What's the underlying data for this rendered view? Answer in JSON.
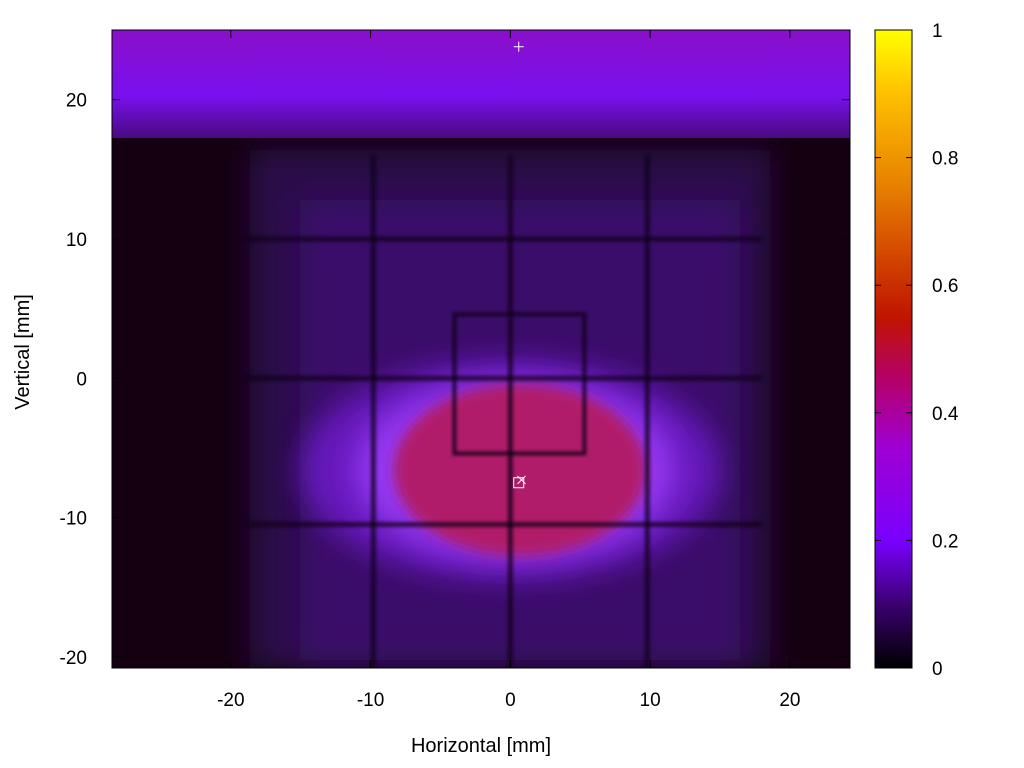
{
  "chart_data": {
    "type": "heatmap",
    "title": "",
    "xlabel": "Horizontal [mm]",
    "ylabel": "Vertical [mm]",
    "xlim": [
      -28.5,
      24.3
    ],
    "ylim": [
      -20.8,
      25.0
    ],
    "xticks": [
      -20,
      -10,
      0,
      10,
      20
    ],
    "yticks": [
      -20,
      -10,
      0,
      10,
      20
    ],
    "x_tick_labels": [
      "-20",
      "-10",
      "0",
      "10",
      "20"
    ],
    "y_tick_labels": [
      "-20",
      "-10",
      "0",
      "10",
      "20"
    ],
    "colorbar": {
      "range": [
        0,
        1
      ],
      "ticks": [
        0,
        0.2,
        0.4,
        0.6,
        0.8,
        1
      ],
      "tick_labels": [
        "0",
        "0.2",
        "0.4",
        "0.6",
        "0.8",
        "1"
      ],
      "palette": [
        {
          "v": 0.0,
          "color": "#000000"
        },
        {
          "v": 0.1,
          "color": "#3b0070"
        },
        {
          "v": 0.2,
          "color": "#7a00ff"
        },
        {
          "v": 0.35,
          "color": "#a000d0"
        },
        {
          "v": 0.45,
          "color": "#b4006a"
        },
        {
          "v": 0.55,
          "color": "#c01400"
        },
        {
          "v": 0.75,
          "color": "#e67e00"
        },
        {
          "v": 0.9,
          "color": "#ffc000"
        },
        {
          "v": 1.0,
          "color": "#ffff00"
        }
      ]
    },
    "regions": [
      {
        "name": "upper-band",
        "x": [
          -28.5,
          24.3
        ],
        "y": [
          17.3,
          25.0
        ],
        "value": 0.28
      },
      {
        "name": "field",
        "x": [
          -19,
          18
        ],
        "y": [
          -20.8,
          16
        ],
        "value": 0.07
      },
      {
        "name": "bright-spot",
        "center": [
          0.5,
          -7
        ],
        "radius": [
          8.5,
          5.5
        ],
        "value": 0.4
      }
    ],
    "grid_lines_x_mm": [
      -9.8,
      0,
      9.8
    ],
    "grid_lines_y_mm": [
      10,
      0,
      -10.5
    ],
    "markers": [
      {
        "symbol": "+",
        "x": 0.6,
        "y": 23.8
      },
      {
        "symbol": "square",
        "x": 0.6,
        "y": -7.5
      },
      {
        "symbol": "x",
        "x": 0.8,
        "y": -7.3
      }
    ],
    "grid": false,
    "legend": "none"
  }
}
